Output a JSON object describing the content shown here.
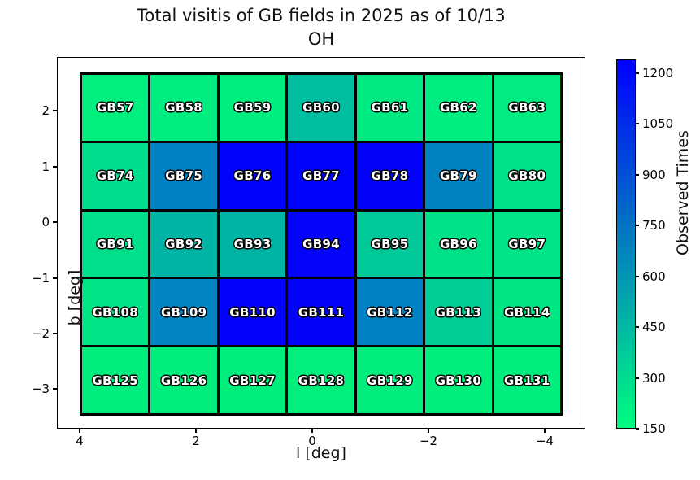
{
  "title": {
    "line1": "Total visitis of GB fields in 2025 as of 10/13",
    "line2": "OH"
  },
  "axes": {
    "xlabel": "l [deg]",
    "ylabel": "b [deg]",
    "x_ticks": [
      "4",
      "2",
      "0",
      "−2",
      "−4"
    ],
    "y_ticks": [
      "2",
      "1",
      "0",
      "−1",
      "−2",
      "−3"
    ]
  },
  "colorbar": {
    "label": "Observed Times",
    "ticks_top_to_bottom": [
      "1200",
      "1050",
      "900",
      "750",
      "600",
      "450",
      "300",
      "150"
    ],
    "colormap": "winter_r",
    "top_color": "#0000fe",
    "bottom_color": "#00fd7e"
  },
  "chart_data": {
    "type": "heatmap",
    "title": "Total visitis of GB fields in 2025 as of 10/13 OH",
    "xlabel": "l [deg]",
    "ylabel": "b [deg]",
    "colorbar_label": "Observed Times",
    "xlim": [
      4.4,
      -4.4
    ],
    "ylim": [
      -3.4,
      2.65
    ],
    "x_tick_values": [
      4,
      2,
      0,
      -2,
      -4
    ],
    "y_tick_values": [
      2,
      1,
      0,
      -1,
      -2,
      -3
    ],
    "colorbar_tick_values": [
      150,
      300,
      450,
      600,
      750,
      900,
      1050,
      1200
    ],
    "value_range_estimate": [
      150,
      1240
    ],
    "l_centers_estimate": [
      3.4,
      2.2,
      1.0,
      -0.2,
      -1.4,
      -2.5,
      -3.7
    ],
    "b_centers_estimate": [
      2.1,
      0.8,
      -0.4,
      -1.6,
      -2.8
    ],
    "rows": [
      {
        "b_center": 2.1,
        "cells": [
          {
            "label": "GB57",
            "value": 215,
            "color": "#00ef7f"
          },
          {
            "label": "GB58",
            "value": 225,
            "color": "#00ed81"
          },
          {
            "label": "GB59",
            "value": 220,
            "color": "#00ee80"
          },
          {
            "label": "GB60",
            "value": 425,
            "color": "#00bfa0"
          },
          {
            "label": "GB61",
            "value": 240,
            "color": "#00ea83"
          },
          {
            "label": "GB62",
            "value": 225,
            "color": "#00ed81"
          },
          {
            "label": "GB63",
            "value": 230,
            "color": "#00ec82"
          }
        ]
      },
      {
        "b_center": 0.8,
        "cells": [
          {
            "label": "GB74",
            "value": 295,
            "color": "#00dd8c"
          },
          {
            "label": "GB75",
            "value": 700,
            "color": "#0081c4"
          },
          {
            "label": "GB76",
            "value": 1235,
            "color": "#0101fe"
          },
          {
            "label": "GB77",
            "value": 1240,
            "color": "#0101fe"
          },
          {
            "label": "GB78",
            "value": 1230,
            "color": "#0303fc"
          },
          {
            "label": "GB79",
            "value": 695,
            "color": "#0083c3"
          },
          {
            "label": "GB80",
            "value": 270,
            "color": "#00e289"
          }
        ]
      },
      {
        "b_center": -0.4,
        "cells": [
          {
            "label": "GB91",
            "value": 285,
            "color": "#00df8a"
          },
          {
            "label": "GB92",
            "value": 465,
            "color": "#00b5a5"
          },
          {
            "label": "GB93",
            "value": 470,
            "color": "#00b4a5"
          },
          {
            "label": "GB94",
            "value": 1225,
            "color": "#0404fb"
          },
          {
            "label": "GB95",
            "value": 380,
            "color": "#00c999"
          },
          {
            "label": "GB96",
            "value": 270,
            "color": "#00e287"
          },
          {
            "label": "GB97",
            "value": 265,
            "color": "#00e386"
          }
        ]
      },
      {
        "b_center": -1.6,
        "cells": [
          {
            "label": "GB108",
            "value": 260,
            "color": "#00e485"
          },
          {
            "label": "GB109",
            "value": 690,
            "color": "#0084c2"
          },
          {
            "label": "GB110",
            "value": 1235,
            "color": "#0202fd"
          },
          {
            "label": "GB111",
            "value": 1230,
            "color": "#0303fc"
          },
          {
            "label": "GB112",
            "value": 700,
            "color": "#0082c4"
          },
          {
            "label": "GB113",
            "value": 370,
            "color": "#00cc96"
          },
          {
            "label": "GB114",
            "value": 250,
            "color": "#00e684"
          }
        ]
      },
      {
        "b_center": -2.8,
        "cells": [
          {
            "label": "GB125",
            "value": 220,
            "color": "#00ee7d"
          },
          {
            "label": "GB126",
            "value": 215,
            "color": "#00ef7c"
          },
          {
            "label": "GB127",
            "value": 215,
            "color": "#00ef7c"
          },
          {
            "label": "GB128",
            "value": 210,
            "color": "#00f07b"
          },
          {
            "label": "GB129",
            "value": 220,
            "color": "#00ee7d"
          },
          {
            "label": "GB130",
            "value": 215,
            "color": "#00ef7c"
          },
          {
            "label": "GB131",
            "value": 220,
            "color": "#00ee7d"
          }
        ]
      }
    ]
  }
}
